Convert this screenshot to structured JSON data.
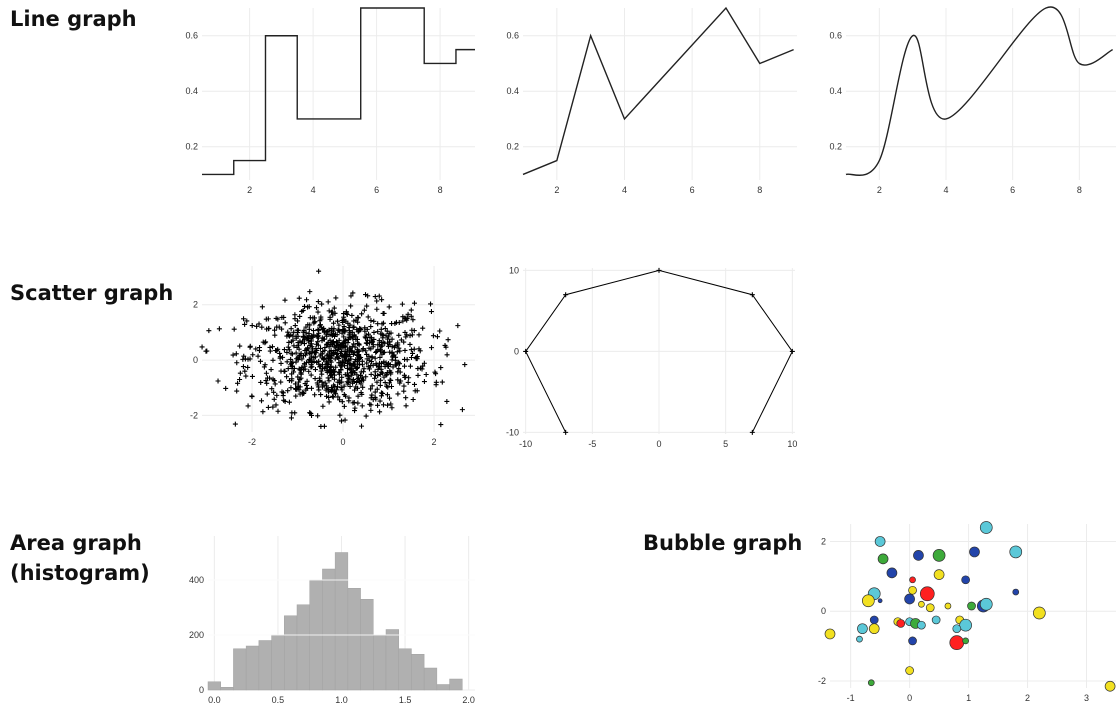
{
  "labels": {
    "line": "Line graph",
    "scatter": "Scatter graph",
    "area_line1": "Area graph",
    "area_line2": "(histogram)",
    "bubble": "Bubble graph"
  },
  "chart_data": [
    {
      "id": "line-step",
      "type": "line",
      "interpolation": "step-mid",
      "x": [
        1,
        2,
        3,
        4,
        5,
        6,
        7,
        8,
        9
      ],
      "y": [
        0.1,
        0.15,
        0.6,
        0.3,
        0.3,
        0.7,
        0.7,
        0.5,
        0.55
      ],
      "xlim": [
        0.5,
        9.1
      ],
      "ylim": [
        0.08,
        0.7
      ],
      "xticks": [
        2,
        4,
        6,
        8
      ],
      "yticks": [
        0.2,
        0.4,
        0.6
      ],
      "grid": true,
      "color": "#222222"
    },
    {
      "id": "line-linear",
      "type": "line",
      "interpolation": "linear",
      "x": [
        1,
        2,
        3,
        4,
        7,
        8,
        9
      ],
      "y": [
        0.1,
        0.15,
        0.6,
        0.3,
        0.7,
        0.5,
        0.55
      ],
      "xlim": [
        1,
        9.1
      ],
      "ylim": [
        0.08,
        0.7
      ],
      "xticks": [
        2,
        4,
        6,
        8
      ],
      "yticks": [
        0.2,
        0.4,
        0.6
      ],
      "grid": true,
      "color": "#222222"
    },
    {
      "id": "line-smooth",
      "type": "line",
      "interpolation": "smooth",
      "x": [
        1,
        2,
        3,
        4,
        7,
        8,
        9
      ],
      "y": [
        0.1,
        0.15,
        0.6,
        0.3,
        0.7,
        0.5,
        0.55
      ],
      "xlim": [
        1,
        9.1
      ],
      "ylim": [
        0.08,
        0.7
      ],
      "xticks": [
        2,
        4,
        6,
        8
      ],
      "yticks": [
        0.2,
        0.4,
        0.6
      ],
      "grid": true,
      "color": "#222222"
    },
    {
      "id": "scatter-random",
      "type": "scatter",
      "marker": "+",
      "distribution": "standard normal, ~1000 points",
      "n_points": 1000,
      "xlim": [
        -3.1,
        2.9
      ],
      "ylim": [
        -2.6,
        3.4
      ],
      "xticks": [
        -2,
        0,
        2
      ],
      "yticks": [
        -2,
        0,
        2
      ],
      "grid": true,
      "color": "#000000"
    },
    {
      "id": "scatter-line",
      "type": "scatter",
      "marker": "+",
      "connected": true,
      "x": [
        -7,
        -10,
        -7,
        0,
        7,
        10,
        7
      ],
      "y": [
        -10,
        0,
        7,
        10,
        7,
        0,
        -10
      ],
      "xlim": [
        -10.2,
        10.2
      ],
      "ylim": [
        -10.2,
        10.3
      ],
      "xticks": [
        -10,
        -5,
        0,
        5,
        10
      ],
      "yticks": [
        -10,
        0,
        10
      ],
      "grid": true,
      "color": "#000000"
    },
    {
      "id": "histogram",
      "type": "area",
      "bins_start": -0.05,
      "bin_width": 0.1,
      "values": [
        30,
        10,
        150,
        160,
        180,
        200,
        270,
        310,
        400,
        440,
        500,
        370,
        330,
        200,
        220,
        150,
        130,
        80,
        20,
        40
      ],
      "xlim": [
        -0.05,
        2.05
      ],
      "ylim": [
        0,
        560
      ],
      "xticks": [
        0.0,
        0.5,
        1.0,
        1.5,
        2.0
      ],
      "xtick_labels": [
        "0.0",
        "0.5",
        "1.0",
        "1.5",
        "2.0"
      ],
      "yticks": [
        0,
        200,
        400
      ],
      "grid": true,
      "color": "#b0b0b0"
    },
    {
      "id": "bubble",
      "type": "scatter",
      "variant": "bubble",
      "xlim": [
        -1.35,
        3.5
      ],
      "ylim": [
        -2.2,
        2.5
      ],
      "xticks": [
        -1,
        0,
        1,
        2,
        3
      ],
      "yticks": [
        -2,
        0,
        2
      ],
      "grid": true,
      "points": [
        {
          "x": -0.5,
          "y": 2.0,
          "r": 5,
          "c": "#5bc8d8"
        },
        {
          "x": 1.3,
          "y": 2.4,
          "r": 6,
          "c": "#5bc8d8"
        },
        {
          "x": -0.45,
          "y": 1.5,
          "r": 5,
          "c": "#3daa3a"
        },
        {
          "x": -0.3,
          "y": 1.1,
          "r": 5,
          "c": "#2244aa"
        },
        {
          "x": 0.15,
          "y": 1.6,
          "r": 5,
          "c": "#2244aa"
        },
        {
          "x": 0.5,
          "y": 1.6,
          "r": 6,
          "c": "#3daa3a"
        },
        {
          "x": 1.1,
          "y": 1.7,
          "r": 5,
          "c": "#2244aa"
        },
        {
          "x": 1.8,
          "y": 1.7,
          "r": 6,
          "c": "#5bc8d8"
        },
        {
          "x": 0.5,
          "y": 1.05,
          "r": 5,
          "c": "#f2e020"
        },
        {
          "x": 0.05,
          "y": 0.9,
          "r": 3,
          "c": "#ff2020"
        },
        {
          "x": 0.95,
          "y": 0.9,
          "r": 4,
          "c": "#2244aa"
        },
        {
          "x": 0.05,
          "y": 0.6,
          "r": 4,
          "c": "#f2e020"
        },
        {
          "x": -0.6,
          "y": 0.5,
          "r": 6,
          "c": "#5bc8d8"
        },
        {
          "x": 0.3,
          "y": 0.5,
          "r": 7,
          "c": "#ff2020"
        },
        {
          "x": -0.7,
          "y": 0.3,
          "r": 6,
          "c": "#f2e020"
        },
        {
          "x": -0.5,
          "y": 0.3,
          "r": 2,
          "c": "#2244aa"
        },
        {
          "x": 0.0,
          "y": 0.35,
          "r": 5,
          "c": "#2244aa"
        },
        {
          "x": 0.2,
          "y": 0.2,
          "r": 3,
          "c": "#f2e020"
        },
        {
          "x": 0.35,
          "y": 0.1,
          "r": 4,
          "c": "#f2e020"
        },
        {
          "x": 0.65,
          "y": 0.15,
          "r": 3,
          "c": "#f2e020"
        },
        {
          "x": 1.05,
          "y": 0.15,
          "r": 4,
          "c": "#3daa3a"
        },
        {
          "x": 1.25,
          "y": 0.15,
          "r": 6,
          "c": "#2244aa"
        },
        {
          "x": 1.3,
          "y": 0.2,
          "r": 6,
          "c": "#5bc8d8"
        },
        {
          "x": 1.8,
          "y": 0.55,
          "r": 3,
          "c": "#2244aa"
        },
        {
          "x": 2.2,
          "y": -0.05,
          "r": 6,
          "c": "#f2e020"
        },
        {
          "x": -0.6,
          "y": -0.25,
          "r": 4,
          "c": "#2244aa"
        },
        {
          "x": -0.2,
          "y": -0.3,
          "r": 4,
          "c": "#f2e020"
        },
        {
          "x": -0.15,
          "y": -0.35,
          "r": 4,
          "c": "#ff2020"
        },
        {
          "x": 0.0,
          "y": -0.3,
          "r": 4,
          "c": "#5bc8d8"
        },
        {
          "x": 0.1,
          "y": -0.35,
          "r": 5,
          "c": "#3daa3a"
        },
        {
          "x": 0.2,
          "y": -0.4,
          "r": 4,
          "c": "#5bc8d8"
        },
        {
          "x": 0.45,
          "y": -0.25,
          "r": 4,
          "c": "#5bc8d8"
        },
        {
          "x": 0.85,
          "y": -0.25,
          "r": 4,
          "c": "#f2e020"
        },
        {
          "x": 0.95,
          "y": -0.4,
          "r": 6,
          "c": "#5bc8d8"
        },
        {
          "x": -0.8,
          "y": -0.5,
          "r": 5,
          "c": "#5bc8d8"
        },
        {
          "x": -0.6,
          "y": -0.5,
          "r": 5,
          "c": "#f2e020"
        },
        {
          "x": 0.8,
          "y": -0.5,
          "r": 4,
          "c": "#5bc8d8"
        },
        {
          "x": -1.35,
          "y": -0.65,
          "r": 5,
          "c": "#f2e020"
        },
        {
          "x": -0.85,
          "y": -0.8,
          "r": 3,
          "c": "#5bc8d8"
        },
        {
          "x": 0.05,
          "y": -0.85,
          "r": 4,
          "c": "#2244aa"
        },
        {
          "x": 0.8,
          "y": -0.9,
          "r": 7,
          "c": "#ff2020"
        },
        {
          "x": 0.95,
          "y": -0.85,
          "r": 3,
          "c": "#3daa3a"
        },
        {
          "x": 0.0,
          "y": -1.7,
          "r": 4,
          "c": "#f2e020"
        },
        {
          "x": -0.65,
          "y": -2.05,
          "r": 3,
          "c": "#3daa3a"
        },
        {
          "x": 3.4,
          "y": -2.15,
          "r": 5,
          "c": "#f2e020"
        }
      ]
    }
  ]
}
